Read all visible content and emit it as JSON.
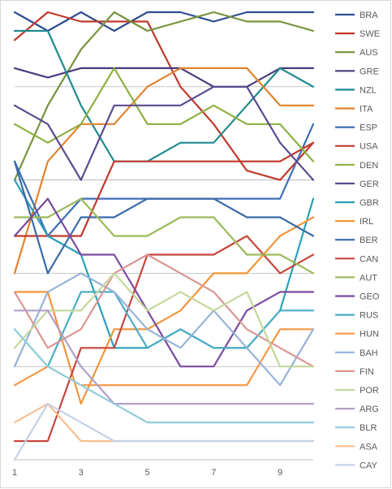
{
  "chart_data": {
    "type": "line",
    "title": "",
    "xlabel": "",
    "ylabel": "",
    "x": [
      1,
      2,
      3,
      4,
      5,
      6,
      7,
      8,
      9,
      10
    ],
    "x_tick_labels": [
      "1",
      "3",
      "5",
      "7",
      "9"
    ],
    "x_tick_values": [
      1,
      3,
      5,
      7,
      9
    ],
    "y_axis": "rank (1 = top), not labeled",
    "ylim": [
      1,
      24
    ],
    "grid": "horizontal gridlines every 5 ranks",
    "legend": "right",
    "series": [
      {
        "name": "BRA",
        "color": "#2e4d8f",
        "values": [
          1,
          2,
          1,
          2,
          1,
          1,
          1.5,
          1,
          1,
          1
        ]
      },
      {
        "name": "SWE",
        "color": "#c0392b",
        "values": [
          2.5,
          1,
          1.5,
          1.5,
          1.5,
          5,
          7,
          9.5,
          10,
          8
        ]
      },
      {
        "name": "AUS",
        "color": "#77933c",
        "values": [
          10,
          6,
          3,
          1,
          2,
          1.5,
          1,
          1.5,
          1.5,
          2
        ]
      },
      {
        "name": "GRE",
        "color": "#4b3a7c",
        "values": [
          4,
          4.5,
          4,
          4,
          4,
          4,
          5,
          5,
          4,
          4
        ]
      },
      {
        "name": "NZL",
        "color": "#1f8a8f",
        "values": [
          2,
          2,
          6,
          9,
          9,
          8,
          8,
          6,
          4,
          5
        ]
      },
      {
        "name": "ITA",
        "color": "#e0832b",
        "values": [
          15,
          9,
          7,
          7,
          5,
          4,
          4,
          4,
          6,
          6
        ]
      },
      {
        "name": "ESP",
        "color": "#3d6fb5",
        "values": [
          9,
          13,
          11,
          11,
          11,
          11,
          11,
          11,
          11,
          7
        ]
      },
      {
        "name": "USA",
        "color": "#c0392b",
        "values": [
          13,
          13,
          13,
          9,
          9,
          9,
          9,
          9,
          9,
          8
        ]
      },
      {
        "name": "DEN",
        "color": "#8db040",
        "values": [
          7,
          8,
          7,
          4,
          7,
          7,
          6,
          7,
          7,
          9
        ]
      },
      {
        "name": "GER",
        "color": "#5b4a90",
        "values": [
          6,
          7,
          10,
          6,
          6,
          6,
          5,
          5,
          8,
          10
        ]
      },
      {
        "name": "GBR",
        "color": "#2aa0b8",
        "values": [
          10,
          13,
          14,
          19,
          19,
          18,
          19,
          19,
          17,
          11
        ]
      },
      {
        "name": "IRL",
        "color": "#f0953a",
        "values": [
          16,
          16,
          22,
          18,
          18,
          17,
          15,
          15,
          13,
          12
        ]
      },
      {
        "name": "BER",
        "color": "#3a6aa8",
        "values": [
          9,
          15,
          12,
          12,
          11,
          11,
          11,
          12,
          12,
          13
        ]
      },
      {
        "name": "CAN",
        "color": "#c8463d",
        "values": [
          24,
          24,
          19,
          19,
          14,
          14,
          14,
          13,
          15,
          14
        ]
      },
      {
        "name": "AUT",
        "color": "#9bbb59",
        "values": [
          12,
          12,
          11,
          13,
          13,
          12,
          12,
          14,
          14,
          15
        ]
      },
      {
        "name": "GEO",
        "color": "#7b4aa0",
        "values": [
          13,
          11,
          14,
          14,
          17,
          20,
          20,
          17,
          16,
          16
        ]
      },
      {
        "name": "RUS",
        "color": "#4bacc6",
        "values": [
          18,
          20,
          16,
          16,
          19,
          18,
          19,
          19,
          17,
          17
        ]
      },
      {
        "name": "HUN",
        "color": "#f79646",
        "values": [
          21,
          20,
          21,
          21,
          21,
          21,
          21,
          21,
          18,
          18
        ]
      },
      {
        "name": "BAH",
        "color": "#95b3d7",
        "values": [
          20,
          16,
          15,
          16,
          18,
          19,
          17,
          19,
          21,
          18
        ]
      },
      {
        "name": "FIN",
        "color": "#da9694",
        "values": [
          16,
          19,
          18,
          15,
          14,
          15,
          16,
          18,
          19,
          20
        ]
      },
      {
        "name": "POR",
        "color": "#c4d79b",
        "values": [
          19,
          17,
          17,
          15,
          17,
          16,
          17,
          16,
          20,
          20
        ]
      },
      {
        "name": "ARG",
        "color": "#b1a0c7",
        "values": [
          17,
          17,
          20,
          22,
          22,
          22,
          22,
          22,
          22,
          22
        ]
      },
      {
        "name": "BLR",
        "color": "#92cddc",
        "values": [
          18,
          20,
          21,
          22,
          23,
          23,
          23,
          23,
          23,
          23
        ]
      },
      {
        "name": "ASA",
        "color": "#fabf8f",
        "values": [
          23,
          22,
          24,
          24,
          24,
          24,
          24,
          24,
          24,
          24
        ]
      },
      {
        "name": "CAY",
        "color": "#c5d0e6",
        "values": [
          25,
          22,
          23,
          24,
          24,
          24,
          24,
          24,
          24,
          24
        ]
      }
    ]
  }
}
